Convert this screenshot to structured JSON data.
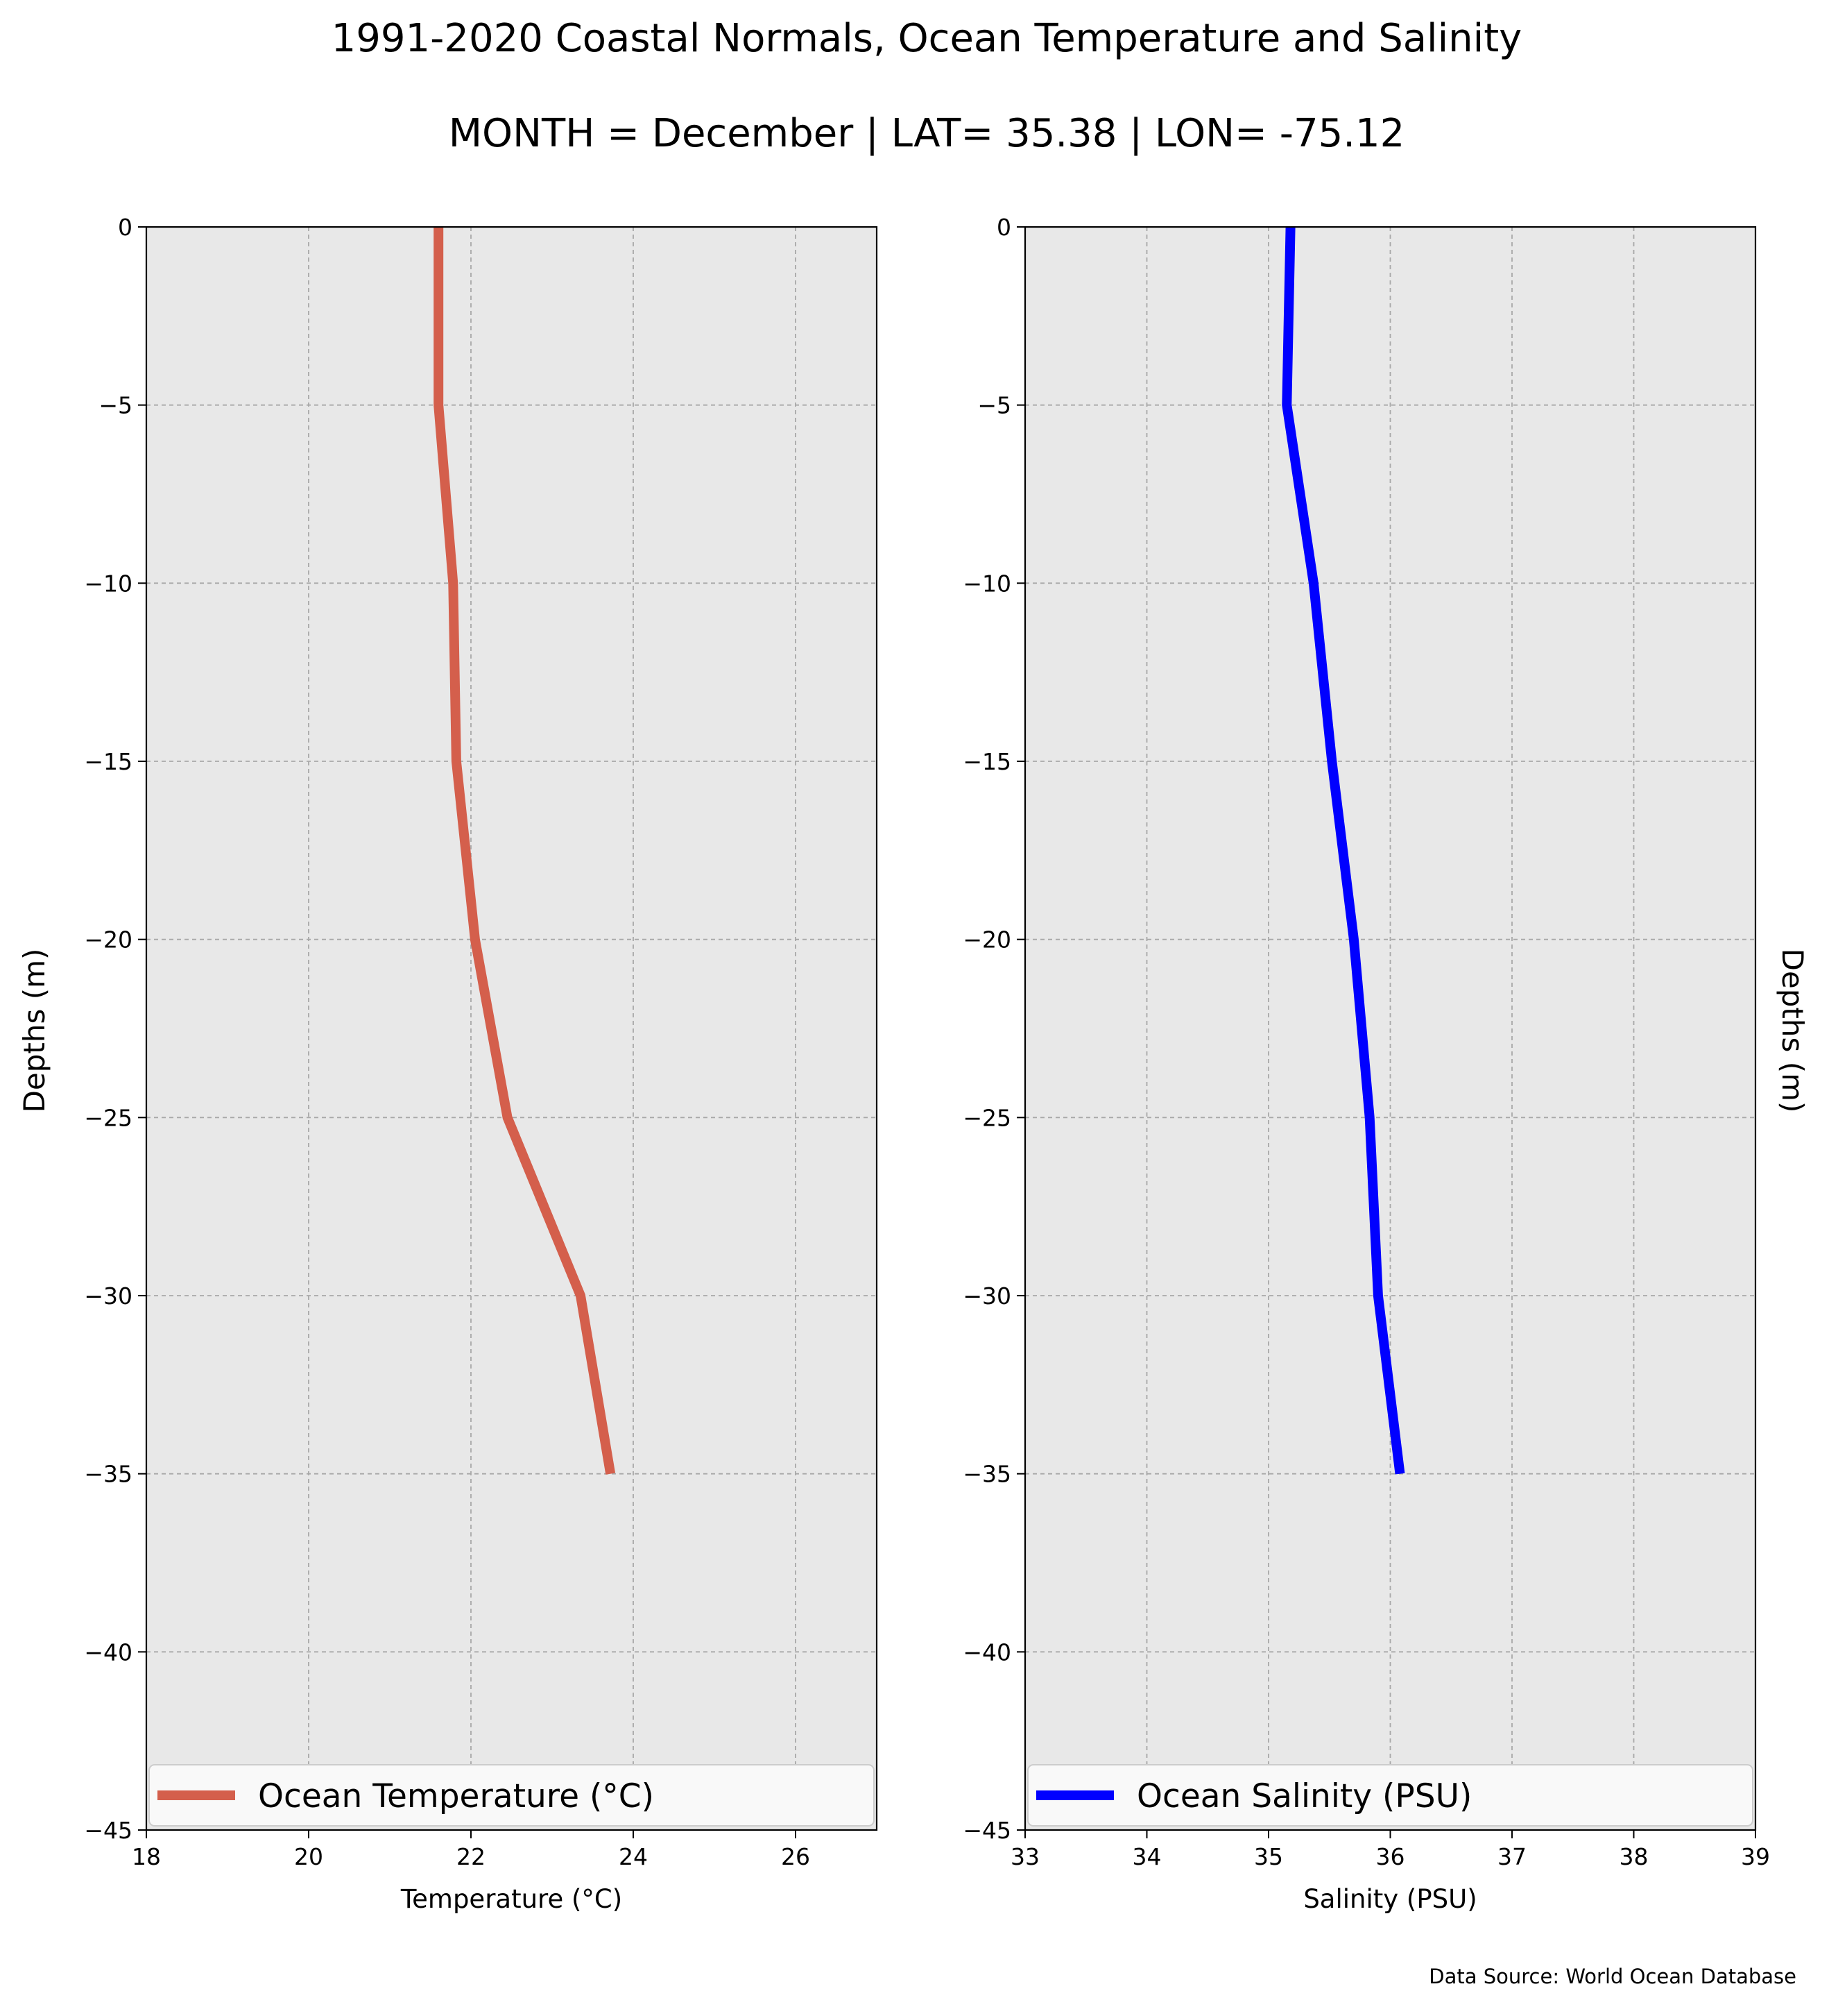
{
  "title": "1991-2020 Coastal Normals, Ocean Temperature and Salinity",
  "subtitle": "MONTH = December | LAT= 35.38 | LON= -75.12",
  "source_note": "Data Source: World Ocean Database",
  "chart_data": [
    {
      "type": "line",
      "name": "temperature",
      "xlabel": "Temperature (°C)",
      "ylabel": "Depths (m)",
      "xlim": [
        18,
        27
      ],
      "ylim": [
        -45,
        0
      ],
      "x_ticks": [
        18,
        20,
        22,
        24,
        26
      ],
      "y_ticks": [
        0,
        -5,
        -10,
        -15,
        -20,
        -25,
        -30,
        -35,
        -40,
        -45
      ],
      "x_tick_labels": [
        "18",
        "20",
        "22",
        "24",
        "26"
      ],
      "y_tick_labels": [
        "0",
        "−5",
        "−10",
        "−15",
        "−20",
        "−25",
        "−30",
        "−35",
        "−40",
        "−45"
      ],
      "grid": true,
      "legend_position": "bottom",
      "series": [
        {
          "name": "Ocean Temperature (°C)",
          "color": "#d45f4c",
          "x": [
            21.6,
            21.6,
            21.78,
            21.82,
            22.05,
            22.45,
            23.35,
            23.72
          ],
          "y": [
            0,
            -5,
            -10,
            -15,
            -20,
            -25,
            -30,
            -35
          ]
        }
      ]
    },
    {
      "type": "line",
      "name": "salinity",
      "xlabel": "Salinity (PSU)",
      "ylabel": "Depths (m)",
      "xlim": [
        33,
        39
      ],
      "ylim": [
        -45,
        0
      ],
      "x_ticks": [
        33,
        34,
        35,
        36,
        37,
        38,
        39
      ],
      "y_ticks": [
        0,
        -5,
        -10,
        -15,
        -20,
        -25,
        -30,
        -35,
        -40,
        -45
      ],
      "x_tick_labels": [
        "33",
        "34",
        "35",
        "36",
        "37",
        "38",
        "39"
      ],
      "y_tick_labels": [
        "0",
        "−5",
        "−10",
        "−15",
        "−20",
        "−25",
        "−30",
        "−35",
        "−40",
        "−45"
      ],
      "grid": true,
      "legend_position": "bottom",
      "series": [
        {
          "name": "Ocean Salinity (PSU)",
          "color": "#0000ff",
          "x": [
            35.18,
            35.15,
            35.37,
            35.52,
            35.7,
            35.83,
            35.9,
            36.08
          ],
          "y": [
            0,
            -5,
            -10,
            -15,
            -20,
            -25,
            -30,
            -35
          ]
        }
      ]
    }
  ],
  "colors": {
    "plot_background": "#e8e8e8",
    "legend_background": "#f9f9f9",
    "legend_border": "#cccccc"
  }
}
